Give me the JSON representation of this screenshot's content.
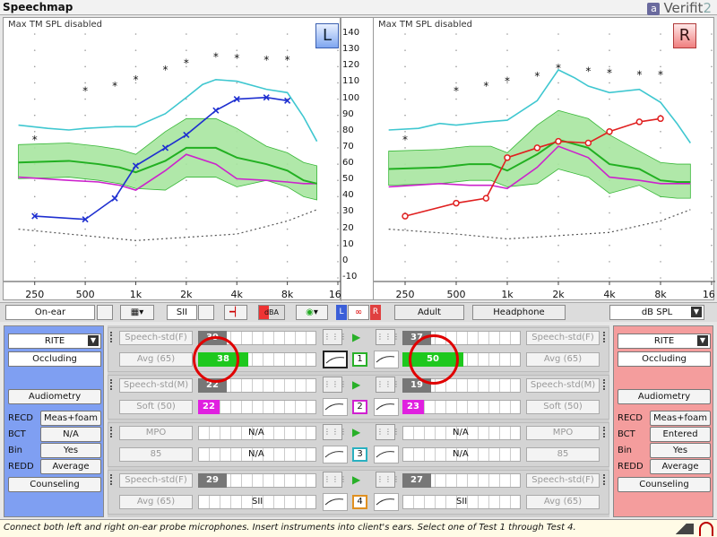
{
  "app": {
    "title": "Speechmap",
    "brand": "Verifit",
    "brand_version": "2",
    "brand_mark": "a"
  },
  "charts": {
    "left": {
      "caption": "Max TM SPL disabled",
      "badge": "L"
    },
    "right": {
      "caption": "Max TM SPL disabled",
      "badge": "R"
    },
    "y_labels": [
      "140",
      "130",
      "120",
      "110",
      "100",
      "90",
      "80",
      "70",
      "60",
      "50",
      "40",
      "30",
      "20",
      "10",
      "0",
      "-10"
    ],
    "x_labels": [
      "250",
      "500",
      "1k",
      "2k",
      "4k",
      "8k",
      "16k"
    ]
  },
  "chart_data": [
    {
      "type": "line",
      "ear": "left",
      "ylim": [
        -10,
        140
      ],
      "x_hz": [
        250,
        500,
        1000,
        2000,
        4000,
        8000,
        16000
      ],
      "series": [
        {
          "role": "aided-response",
          "color": "#1e2fd0",
          "points": [
            [
              250,
              28
            ],
            [
              500,
              26
            ],
            [
              750,
              39
            ],
            [
              1000,
              59
            ],
            [
              1500,
              70
            ],
            [
              2000,
              78
            ],
            [
              3000,
              93
            ],
            [
              4000,
              100
            ],
            [
              6000,
              101
            ],
            [
              8000,
              99
            ]
          ]
        },
        {
          "role": "ucl",
          "color": "#3fc7d0",
          "points": [
            [
              200,
              84
            ],
            [
              300,
              82
            ],
            [
              400,
              81
            ],
            [
              500,
              82
            ],
            [
              750,
              83
            ],
            [
              1000,
              83
            ],
            [
              1500,
              91
            ],
            [
              2000,
              101
            ],
            [
              2500,
              109
            ],
            [
              3000,
              112
            ],
            [
              4000,
              111
            ],
            [
              6000,
              106
            ],
            [
              8000,
              104
            ],
            [
              10000,
              89
            ],
            [
              12000,
              74
            ]
          ]
        },
        {
          "role": "speech-ltass",
          "color": "#22b022",
          "points": [
            [
              200,
              61
            ],
            [
              400,
              62
            ],
            [
              600,
              60
            ],
            [
              800,
              58
            ],
            [
              1000,
              55
            ],
            [
              1500,
              62
            ],
            [
              2000,
              70
            ],
            [
              3000,
              70
            ],
            [
              4000,
              64
            ],
            [
              6000,
              60
            ],
            [
              8000,
              56
            ],
            [
              10000,
              50
            ],
            [
              12000,
              48
            ]
          ]
        },
        {
          "role": "unaided",
          "color": "#cc22cc",
          "points": [
            [
              200,
              52
            ],
            [
              400,
              50
            ],
            [
              600,
              49
            ],
            [
              800,
              47
            ],
            [
              1000,
              44
            ],
            [
              1500,
              56
            ],
            [
              2000,
              66
            ],
            [
              3000,
              60
            ],
            [
              4000,
              51
            ],
            [
              6000,
              50
            ],
            [
              8000,
              49
            ],
            [
              10000,
              48
            ],
            [
              12000,
              48
            ]
          ]
        },
        {
          "role": "threshold-dots",
          "color": "#555555",
          "points": [
            [
              200,
              20
            ],
            [
              500,
              16
            ],
            [
              1000,
              13
            ],
            [
              2000,
              15
            ],
            [
              4000,
              17
            ],
            [
              8000,
              25
            ],
            [
              12000,
              32
            ]
          ]
        }
      ],
      "stars": [
        [
          250,
          75
        ],
        [
          500,
          105
        ],
        [
          750,
          108
        ],
        [
          1000,
          112
        ],
        [
          1500,
          118
        ],
        [
          2000,
          122
        ],
        [
          3000,
          126
        ],
        [
          4000,
          125
        ],
        [
          6000,
          124
        ],
        [
          8000,
          124
        ]
      ]
    },
    {
      "type": "line",
      "ear": "right",
      "ylim": [
        -10,
        140
      ],
      "x_hz": [
        250,
        500,
        1000,
        2000,
        4000,
        8000,
        16000
      ],
      "series": [
        {
          "role": "aided-response",
          "color": "#e02020",
          "points": [
            [
              250,
              28
            ],
            [
              500,
              36
            ],
            [
              750,
              39
            ],
            [
              1000,
              64
            ],
            [
              1500,
              70
            ],
            [
              2000,
              74
            ],
            [
              3000,
              73
            ],
            [
              4000,
              80
            ],
            [
              6000,
              86
            ],
            [
              8000,
              88
            ]
          ]
        },
        {
          "role": "ucl",
          "color": "#3fc7d0",
          "points": [
            [
              200,
              81
            ],
            [
              300,
              82
            ],
            [
              400,
              85
            ],
            [
              500,
              84
            ],
            [
              750,
              86
            ],
            [
              1000,
              87
            ],
            [
              1500,
              99
            ],
            [
              2000,
              118
            ],
            [
              2500,
              113
            ],
            [
              3000,
              108
            ],
            [
              4000,
              104
            ],
            [
              6000,
              106
            ],
            [
              8000,
              98
            ],
            [
              10000,
              85
            ],
            [
              12000,
              73
            ]
          ]
        },
        {
          "role": "speech-ltass",
          "color": "#22b022",
          "points": [
            [
              200,
              57
            ],
            [
              400,
              58
            ],
            [
              600,
              60
            ],
            [
              800,
              60
            ],
            [
              1000,
              56
            ],
            [
              1500,
              66
            ],
            [
              2000,
              75
            ],
            [
              3000,
              70
            ],
            [
              4000,
              60
            ],
            [
              6000,
              57
            ],
            [
              8000,
              50
            ],
            [
              10000,
              49
            ],
            [
              12000,
              49
            ]
          ]
        },
        {
          "role": "unaided",
          "color": "#cc22cc",
          "points": [
            [
              200,
              46
            ],
            [
              400,
              48
            ],
            [
              600,
              47
            ],
            [
              800,
              47
            ],
            [
              1000,
              45
            ],
            [
              1500,
              58
            ],
            [
              2000,
              71
            ],
            [
              3000,
              64
            ],
            [
              4000,
              52
            ],
            [
              6000,
              50
            ],
            [
              8000,
              48
            ],
            [
              10000,
              48
            ],
            [
              12000,
              48
            ]
          ]
        },
        {
          "role": "threshold-dots",
          "color": "#555555",
          "points": [
            [
              200,
              20
            ],
            [
              500,
              17
            ],
            [
              1000,
              14
            ],
            [
              2000,
              16
            ],
            [
              4000,
              18
            ],
            [
              8000,
              25
            ],
            [
              12000,
              32
            ]
          ]
        }
      ],
      "stars": [
        [
          250,
          75
        ],
        [
          500,
          105
        ],
        [
          750,
          108
        ],
        [
          1000,
          111
        ],
        [
          1500,
          114
        ],
        [
          2000,
          119
        ],
        [
          3000,
          117
        ],
        [
          4000,
          116
        ],
        [
          6000,
          115
        ],
        [
          8000,
          115
        ]
      ]
    }
  ],
  "toolbar": {
    "mode": "On-ear",
    "scale": "SII",
    "dba": "dBA",
    "age": "Adult",
    "transducer": "Headphone",
    "units": "dB SPL",
    "lr_l": "L",
    "lr_r": "R"
  },
  "left_panel": {
    "style": "RITE",
    "fitting": "Occluding",
    "audiometry": "Audiometry",
    "rows": [
      {
        "label": "RECD",
        "value": "Meas+foam"
      },
      {
        "label": "BCT",
        "value": "N/A"
      },
      {
        "label": "Bin",
        "value": "Yes"
      },
      {
        "label": "REDD",
        "value": "Average"
      }
    ],
    "counseling": "Counseling"
  },
  "right_panel": {
    "style": "RITE",
    "fitting": "Occluding",
    "audiometry": "Audiometry",
    "rows": [
      {
        "label": "RECD",
        "value": "Meas+foam"
      },
      {
        "label": "BCT",
        "value": "Entered"
      },
      {
        "label": "Bin",
        "value": "Yes"
      },
      {
        "label": "REDD",
        "value": "Average"
      }
    ],
    "counseling": "Counseling"
  },
  "tests": [
    {
      "num": "1",
      "color": "#28b028",
      "stim": "Speech-std(F)",
      "level": "Avg (65)",
      "l_top": "39",
      "l_val": "38",
      "r_top": "37",
      "r_val": "50",
      "val_color": "#1ec81e"
    },
    {
      "num": "2",
      "color": "#d020d0",
      "stim": "Speech-std(M)",
      "level": "Soft (50)",
      "l_top": "22",
      "l_val": "22",
      "r_top": "19",
      "r_val": "23",
      "val_color": "#e020e0"
    },
    {
      "num": "3",
      "color": "#2ab0c0",
      "stim": "MPO",
      "level": "85",
      "l_na": "N/A",
      "r_na": "N/A"
    },
    {
      "num": "4",
      "color": "#e09020",
      "stim": "Speech-std(F)",
      "level": "Avg (65)",
      "l_top": "29",
      "r_top": "27",
      "l_sii": "SII",
      "r_sii": "SII"
    }
  ],
  "status": "Connect both left and right on-ear probe microphones.  Insert instruments into client's ears.  Select one of Test 1 through Test 4."
}
